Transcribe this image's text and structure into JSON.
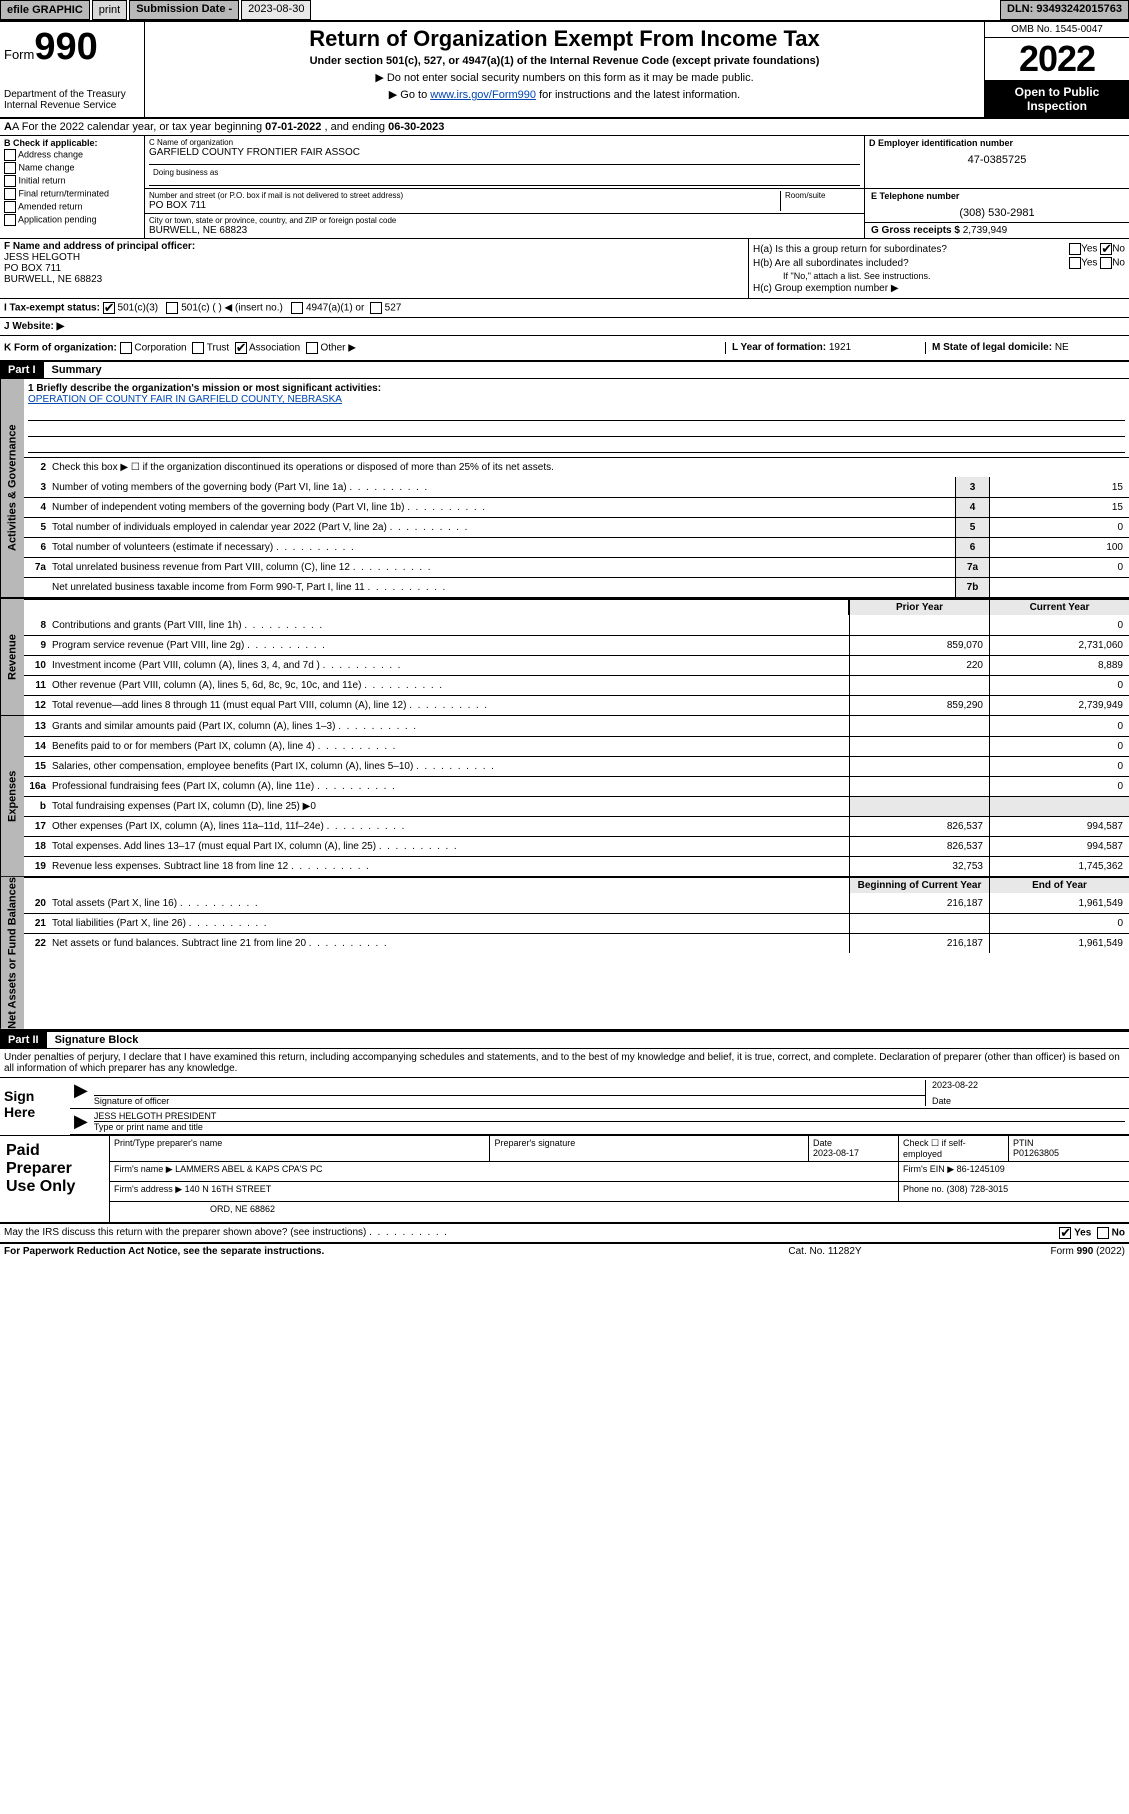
{
  "topbar": {
    "efile": "efile GRAPHIC",
    "print": "print",
    "sub_label": "Submission Date -",
    "sub_date": "2023-08-30",
    "dln": "DLN: 93493242015763"
  },
  "header": {
    "form_prefix": "Form",
    "form_num": "990",
    "dept": "Department of the Treasury\nInternal Revenue Service",
    "title": "Return of Organization Exempt From Income Tax",
    "sub1": "Under section 501(c), 527, or 4947(a)(1) of the Internal Revenue Code (except private foundations)",
    "sub2": "▶ Do not enter social security numbers on this form as it may be made public.",
    "sub3_pre": "▶ Go to ",
    "sub3_link": "www.irs.gov/Form990",
    "sub3_post": " for instructions and the latest information.",
    "omb": "OMB No. 1545-0047",
    "year": "2022",
    "inspect": "Open to Public Inspection"
  },
  "period": {
    "pre": "A For the 2022 calendar year, or tax year beginning ",
    "begin": "07-01-2022",
    "mid": " , and ending ",
    "end": "06-30-2023"
  },
  "boxB": {
    "label": "B Check if applicable:",
    "opts": [
      "Address change",
      "Name change",
      "Initial return",
      "Final return/terminated",
      "Amended return",
      "Application pending"
    ]
  },
  "boxC": {
    "name_label": "C Name of organization",
    "name": "GARFIELD COUNTY FRONTIER FAIR ASSOC",
    "dba_label": "Doing business as",
    "addr_label": "Number and street (or P.O. box if mail is not delivered to street address)",
    "room_label": "Room/suite",
    "addr": "PO BOX 711",
    "city_label": "City or town, state or province, country, and ZIP or foreign postal code",
    "city": "BURWELL, NE  68823"
  },
  "boxD": {
    "label": "D Employer identification number",
    "val": "47-0385725"
  },
  "boxE": {
    "label": "E Telephone number",
    "val": "(308) 530-2981"
  },
  "boxG": {
    "label": "G Gross receipts $",
    "val": "2,739,949"
  },
  "boxF": {
    "label": "F Name and address of principal officer:",
    "name": "JESS HELGOTH",
    "addr1": "PO BOX 711",
    "addr2": "BURWELL, NE  68823"
  },
  "boxH": {
    "ha": "H(a)  Is this a group return for subordinates?",
    "ha_yes": "Yes",
    "ha_no": "No",
    "hb": "H(b)  Are all subordinates included?",
    "hb_note": "If \"No,\" attach a list. See instructions.",
    "hc": "H(c)  Group exemption number ▶"
  },
  "rowI": {
    "label": "I  Tax-exempt status:",
    "c3": "501(c)(3)",
    "c": "501(c) (  ) ◀ (insert no.)",
    "a1": "4947(a)(1) or",
    "527": "527"
  },
  "rowJ": {
    "label": "J  Website: ▶"
  },
  "rowK": {
    "label": "K Form of organization:",
    "opts": [
      "Corporation",
      "Trust",
      "Association",
      "Other ▶"
    ],
    "checked": 2
  },
  "rowL": {
    "label": "L Year of formation:",
    "val": "1921"
  },
  "rowM": {
    "label": "M State of legal domicile:",
    "val": "NE"
  },
  "partI": {
    "hdr": "Part I",
    "title": "Summary",
    "q1_label": "1  Briefly describe the organization's mission or most significant activities:",
    "q1_val": "OPERATION OF COUNTY FAIR IN GARFIELD COUNTY, NEBRASKA",
    "q2": "Check this box ▶ ☐  if the organization discontinued its operations or disposed of more than 25% of its net assets.",
    "rows_gov": [
      {
        "n": "3",
        "t": "Number of voting members of the governing body (Part VI, line 1a)",
        "box": "3",
        "v": "15"
      },
      {
        "n": "4",
        "t": "Number of independent voting members of the governing body (Part VI, line 1b)",
        "box": "4",
        "v": "15"
      },
      {
        "n": "5",
        "t": "Total number of individuals employed in calendar year 2022 (Part V, line 2a)",
        "box": "5",
        "v": "0"
      },
      {
        "n": "6",
        "t": "Total number of volunteers (estimate if necessary)",
        "box": "6",
        "v": "100"
      },
      {
        "n": "7a",
        "t": "Total unrelated business revenue from Part VIII, column (C), line 12",
        "box": "7a",
        "v": "0"
      },
      {
        "n": "",
        "t": "Net unrelated business taxable income from Form 990-T, Part I, line 11",
        "box": "7b",
        "v": ""
      }
    ],
    "hdr_prior": "Prior Year",
    "hdr_cur": "Current Year",
    "rows_rev": [
      {
        "n": "8",
        "t": "Contributions and grants (Part VIII, line 1h)",
        "p": "",
        "c": "0"
      },
      {
        "n": "9",
        "t": "Program service revenue (Part VIII, line 2g)",
        "p": "859,070",
        "c": "2,731,060"
      },
      {
        "n": "10",
        "t": "Investment income (Part VIII, column (A), lines 3, 4, and 7d )",
        "p": "220",
        "c": "8,889"
      },
      {
        "n": "11",
        "t": "Other revenue (Part VIII, column (A), lines 5, 6d, 8c, 9c, 10c, and 11e)",
        "p": "",
        "c": "0"
      },
      {
        "n": "12",
        "t": "Total revenue—add lines 8 through 11 (must equal Part VIII, column (A), line 12)",
        "p": "859,290",
        "c": "2,739,949"
      }
    ],
    "rows_exp": [
      {
        "n": "13",
        "t": "Grants and similar amounts paid (Part IX, column (A), lines 1–3)",
        "p": "",
        "c": "0"
      },
      {
        "n": "14",
        "t": "Benefits paid to or for members (Part IX, column (A), line 4)",
        "p": "",
        "c": "0"
      },
      {
        "n": "15",
        "t": "Salaries, other compensation, employee benefits (Part IX, column (A), lines 5–10)",
        "p": "",
        "c": "0"
      },
      {
        "n": "16a",
        "t": "Professional fundraising fees (Part IX, column (A), line 11e)",
        "p": "",
        "c": "0"
      },
      {
        "n": "b",
        "t": "Total fundraising expenses (Part IX, column (D), line 25) ▶0",
        "p": null,
        "c": null
      },
      {
        "n": "17",
        "t": "Other expenses (Part IX, column (A), lines 11a–11d, 11f–24e)",
        "p": "826,537",
        "c": "994,587"
      },
      {
        "n": "18",
        "t": "Total expenses. Add lines 13–17 (must equal Part IX, column (A), line 25)",
        "p": "826,537",
        "c": "994,587"
      },
      {
        "n": "19",
        "t": "Revenue less expenses. Subtract line 18 from line 12",
        "p": "32,753",
        "c": "1,745,362"
      }
    ],
    "hdr_boy": "Beginning of Current Year",
    "hdr_eoy": "End of Year",
    "rows_net": [
      {
        "n": "20",
        "t": "Total assets (Part X, line 16)",
        "p": "216,187",
        "c": "1,961,549"
      },
      {
        "n": "21",
        "t": "Total liabilities (Part X, line 26)",
        "p": "",
        "c": "0"
      },
      {
        "n": "22",
        "t": "Net assets or fund balances. Subtract line 21 from line 20",
        "p": "216,187",
        "c": "1,961,549"
      }
    ],
    "tab_gov": "Activities & Governance",
    "tab_rev": "Revenue",
    "tab_exp": "Expenses",
    "tab_net": "Net Assets or Fund Balances"
  },
  "partII": {
    "hdr": "Part II",
    "title": "Signature Block",
    "decl": "Under penalties of perjury, I declare that I have examined this return, including accompanying schedules and statements, and to the best of my knowledge and belief, it is true, correct, and complete. Declaration of preparer (other than officer) is based on all information of which preparer has any knowledge.",
    "sign_here": "Sign Here",
    "sig_lbl": "Signature of officer",
    "sig_date": "2023-08-22",
    "date_lbl": "Date",
    "name_title": "JESS HELGOTH  PRESIDENT",
    "name_lbl": "Type or print name and title",
    "paid": "Paid Preparer Use Only",
    "p_name_lbl": "Print/Type preparer's name",
    "p_sig_lbl": "Preparer's signature",
    "p_date_lbl": "Date",
    "p_date": "2023-08-17",
    "p_check": "Check ☐ if self-employed",
    "ptin_lbl": "PTIN",
    "ptin": "P01263805",
    "firm_name_lbl": "Firm's name    ▶",
    "firm_name": "LAMMERS ABEL & KAPS CPA'S PC",
    "firm_ein_lbl": "Firm's EIN ▶",
    "firm_ein": "86-1245109",
    "firm_addr_lbl": "Firm's address ▶",
    "firm_addr1": "140 N 16TH STREET",
    "firm_addr2": "ORD, NE  68862",
    "firm_phone_lbl": "Phone no.",
    "firm_phone": "(308) 728-3015",
    "discuss": "May the IRS discuss this return with the preparer shown above? (see instructions)",
    "discuss_yes": "Yes",
    "discuss_no": "No"
  },
  "footer": {
    "l": "For Paperwork Reduction Act Notice, see the separate instructions.",
    "m": "Cat. No. 11282Y",
    "r": "Form 990 (2022)"
  }
}
